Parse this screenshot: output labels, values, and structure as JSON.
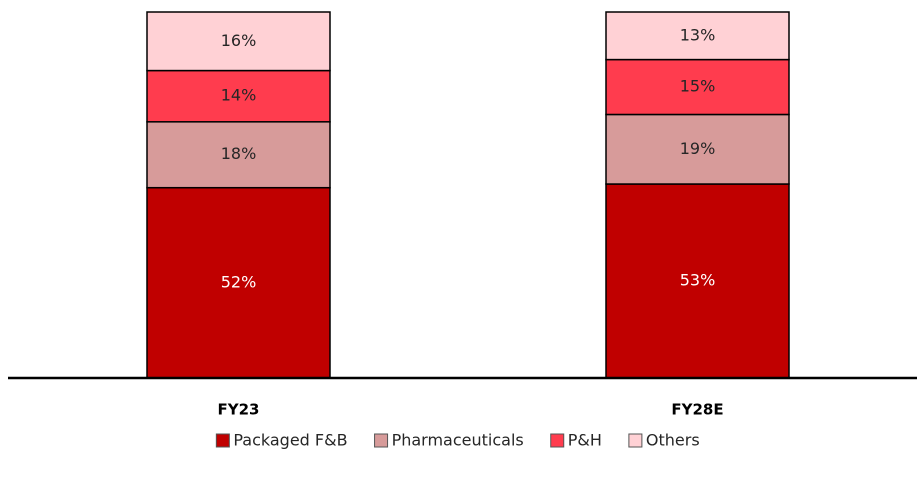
{
  "chart_data": {
    "type": "stacked-bar",
    "categories": [
      "FY23",
      "FY28E"
    ],
    "ylim": [
      0,
      100
    ],
    "series": [
      {
        "name": "Packaged F&B",
        "color": "#c00000",
        "values": [
          52,
          53
        ],
        "value_labels": [
          "52%",
          "53%"
        ]
      },
      {
        "name": "Pharmaceuticals",
        "color": "#d79b9a",
        "values": [
          18,
          19
        ],
        "value_labels": [
          "18%",
          "19%"
        ]
      },
      {
        "name": "P&H",
        "color": "#ff3c4e",
        "values": [
          14,
          15
        ],
        "value_labels": [
          "14%",
          "15%"
        ]
      },
      {
        "name": "Others",
        "color": "#ffd1d5",
        "values": [
          16,
          13
        ],
        "value_labels": [
          "16%",
          "13%"
        ]
      }
    ]
  }
}
